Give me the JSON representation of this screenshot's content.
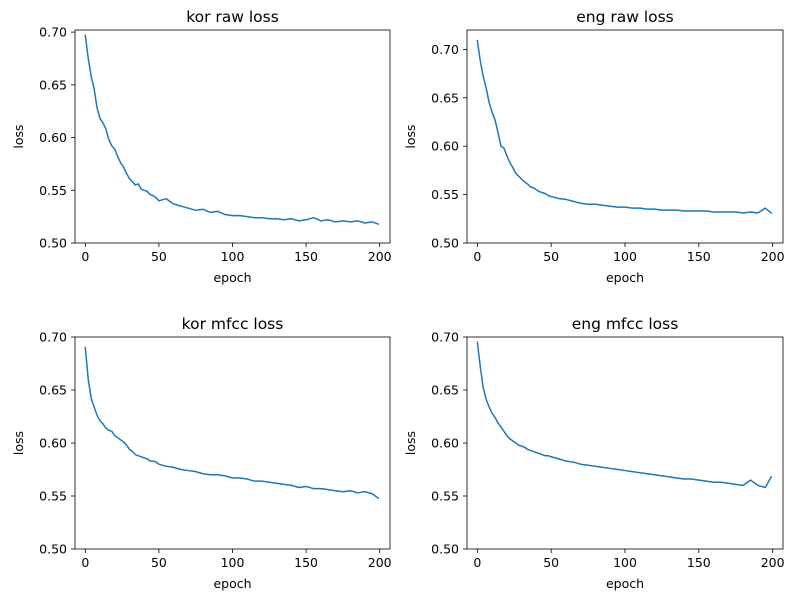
{
  "chart_data": [
    {
      "type": "line",
      "title": "kor raw loss",
      "xlabel": "epoch",
      "ylabel": "loss",
      "xlim": [
        -7,
        207
      ],
      "ylim": [
        0.5,
        0.702
      ],
      "xticks": [
        0,
        50,
        100,
        150,
        200
      ],
      "xtick_labels": [
        "0",
        "50",
        "100",
        "150",
        "200"
      ],
      "yticks": [
        0.5,
        0.55,
        0.6,
        0.65,
        0.7
      ],
      "ytick_labels": [
        "0.50",
        "0.55",
        "0.60",
        "0.65",
        "0.70"
      ],
      "grid": false,
      "color": "#1f77b4",
      "series": [
        {
          "x": [
            0,
            2,
            4,
            6,
            8,
            10,
            12,
            14,
            16,
            18,
            20,
            22,
            24,
            26,
            28,
            30,
            32,
            34,
            36,
            38,
            40,
            42,
            44,
            46,
            48,
            50,
            55,
            60,
            65,
            70,
            75,
            80,
            85,
            90,
            95,
            100,
            105,
            110,
            115,
            120,
            125,
            130,
            135,
            140,
            145,
            150,
            155,
            160,
            165,
            170,
            175,
            180,
            185,
            190,
            195,
            199
          ],
          "y": [
            0.697,
            0.675,
            0.658,
            0.646,
            0.628,
            0.618,
            0.614,
            0.608,
            0.598,
            0.592,
            0.589,
            0.582,
            0.576,
            0.572,
            0.566,
            0.561,
            0.558,
            0.555,
            0.556,
            0.551,
            0.55,
            0.549,
            0.546,
            0.545,
            0.543,
            0.54,
            0.542,
            0.537,
            0.535,
            0.533,
            0.531,
            0.532,
            0.529,
            0.53,
            0.527,
            0.526,
            0.526,
            0.525,
            0.524,
            0.524,
            0.523,
            0.523,
            0.522,
            0.523,
            0.521,
            0.522,
            0.524,
            0.521,
            0.522,
            0.52,
            0.521,
            0.52,
            0.521,
            0.519,
            0.52,
            0.518
          ]
        }
      ]
    },
    {
      "type": "line",
      "title": "eng raw loss",
      "xlabel": "epoch",
      "ylabel": "loss",
      "xlim": [
        -7,
        207
      ],
      "ylim": [
        0.5,
        0.72
      ],
      "xticks": [
        0,
        50,
        100,
        150,
        200
      ],
      "xtick_labels": [
        "0",
        "50",
        "100",
        "150",
        "200"
      ],
      "yticks": [
        0.5,
        0.55,
        0.6,
        0.65,
        0.7
      ],
      "ytick_labels": [
        "0.50",
        "0.55",
        "0.60",
        "0.65",
        "0.70"
      ],
      "grid": false,
      "color": "#1f77b4",
      "series": [
        {
          "x": [
            0,
            2,
            4,
            6,
            8,
            10,
            12,
            14,
            16,
            18,
            20,
            22,
            24,
            26,
            28,
            30,
            32,
            34,
            36,
            38,
            40,
            42,
            44,
            46,
            48,
            50,
            55,
            60,
            65,
            70,
            75,
            80,
            85,
            90,
            95,
            100,
            105,
            110,
            115,
            120,
            125,
            130,
            135,
            140,
            145,
            150,
            155,
            160,
            165,
            170,
            175,
            180,
            185,
            190,
            195,
            199
          ],
          "y": [
            0.709,
            0.688,
            0.672,
            0.66,
            0.645,
            0.635,
            0.627,
            0.614,
            0.6,
            0.598,
            0.59,
            0.583,
            0.578,
            0.572,
            0.569,
            0.566,
            0.563,
            0.561,
            0.558,
            0.557,
            0.555,
            0.553,
            0.552,
            0.551,
            0.549,
            0.548,
            0.546,
            0.545,
            0.543,
            0.541,
            0.54,
            0.54,
            0.539,
            0.538,
            0.537,
            0.537,
            0.536,
            0.536,
            0.535,
            0.535,
            0.534,
            0.534,
            0.534,
            0.533,
            0.533,
            0.533,
            0.533,
            0.532,
            0.532,
            0.532,
            0.532,
            0.531,
            0.532,
            0.531,
            0.536,
            0.531
          ]
        }
      ]
    },
    {
      "type": "line",
      "title": "kor mfcc loss",
      "xlabel": "epoch",
      "ylabel": "loss",
      "xlim": [
        -7,
        207
      ],
      "ylim": [
        0.5,
        0.7
      ],
      "xticks": [
        0,
        50,
        100,
        150,
        200
      ],
      "xtick_labels": [
        "0",
        "50",
        "100",
        "150",
        "200"
      ],
      "yticks": [
        0.5,
        0.55,
        0.6,
        0.65,
        0.7
      ],
      "ytick_labels": [
        "0.50",
        "0.55",
        "0.60",
        "0.65",
        "0.70"
      ],
      "grid": false,
      "color": "#1f77b4",
      "series": [
        {
          "x": [
            0,
            2,
            4,
            6,
            8,
            10,
            12,
            14,
            16,
            18,
            20,
            22,
            24,
            26,
            28,
            30,
            32,
            34,
            36,
            38,
            40,
            42,
            44,
            46,
            48,
            50,
            55,
            60,
            65,
            70,
            75,
            80,
            85,
            90,
            95,
            100,
            105,
            110,
            115,
            120,
            125,
            130,
            135,
            140,
            145,
            150,
            155,
            160,
            165,
            170,
            175,
            180,
            185,
            190,
            195,
            199
          ],
          "y": [
            0.69,
            0.66,
            0.642,
            0.634,
            0.626,
            0.621,
            0.618,
            0.614,
            0.612,
            0.611,
            0.607,
            0.605,
            0.603,
            0.601,
            0.598,
            0.594,
            0.592,
            0.589,
            0.588,
            0.587,
            0.586,
            0.585,
            0.583,
            0.583,
            0.582,
            0.58,
            0.578,
            0.577,
            0.575,
            0.574,
            0.573,
            0.571,
            0.57,
            0.57,
            0.569,
            0.567,
            0.567,
            0.566,
            0.564,
            0.564,
            0.563,
            0.562,
            0.561,
            0.56,
            0.558,
            0.559,
            0.557,
            0.557,
            0.556,
            0.555,
            0.554,
            0.555,
            0.553,
            0.554,
            0.552,
            0.548
          ]
        }
      ]
    },
    {
      "type": "line",
      "title": "eng mfcc loss",
      "xlabel": "epoch",
      "ylabel": "loss",
      "xlim": [
        -7,
        207
      ],
      "ylim": [
        0.5,
        0.7
      ],
      "xticks": [
        0,
        50,
        100,
        150,
        200
      ],
      "xtick_labels": [
        "0",
        "50",
        "100",
        "150",
        "200"
      ],
      "yticks": [
        0.5,
        0.55,
        0.6,
        0.65,
        0.7
      ],
      "ytick_labels": [
        "0.50",
        "0.55",
        "0.60",
        "0.65",
        "0.70"
      ],
      "grid": false,
      "color": "#1f77b4",
      "series": [
        {
          "x": [
            0,
            2,
            4,
            6,
            8,
            10,
            12,
            14,
            16,
            18,
            20,
            22,
            24,
            26,
            28,
            30,
            32,
            34,
            36,
            38,
            40,
            42,
            44,
            46,
            48,
            50,
            55,
            60,
            65,
            70,
            75,
            80,
            85,
            90,
            95,
            100,
            105,
            110,
            115,
            120,
            125,
            130,
            135,
            140,
            145,
            150,
            155,
            160,
            165,
            170,
            175,
            180,
            185,
            190,
            195,
            199
          ],
          "y": [
            0.695,
            0.672,
            0.652,
            0.641,
            0.634,
            0.628,
            0.624,
            0.619,
            0.615,
            0.611,
            0.607,
            0.604,
            0.602,
            0.6,
            0.598,
            0.597,
            0.596,
            0.594,
            0.593,
            0.592,
            0.591,
            0.59,
            0.589,
            0.588,
            0.588,
            0.587,
            0.585,
            0.583,
            0.582,
            0.58,
            0.579,
            0.578,
            0.577,
            0.576,
            0.575,
            0.574,
            0.573,
            0.572,
            0.571,
            0.57,
            0.569,
            0.568,
            0.567,
            0.566,
            0.566,
            0.565,
            0.564,
            0.563,
            0.563,
            0.562,
            0.561,
            0.56,
            0.565,
            0.56,
            0.558,
            0.568
          ]
        }
      ]
    }
  ]
}
